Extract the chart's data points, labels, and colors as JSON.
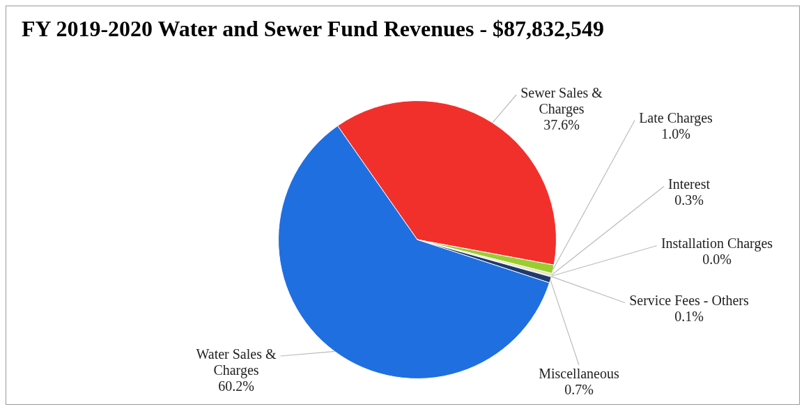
{
  "chart_data": {
    "type": "pie",
    "title": "FY 2019-2020 Water and Sewer Fund Revenues - $87,832,549",
    "categories": [
      "Sewer Sales & Charges",
      "Late Charges",
      "Interest",
      "Installation Charges",
      "Service Fees - Others",
      "Miscellaneous",
      "Water Sales & Charges"
    ],
    "values": [
      37.6,
      1.0,
      0.3,
      0.0,
      0.1,
      0.7,
      60.2
    ],
    "value_labels": [
      "37.6%",
      "1.0%",
      "0.3%",
      "0.0%",
      "0.1%",
      "0.7%",
      "60.2%"
    ],
    "colors": [
      "#f2302b",
      "#9acd32",
      "#e8e0a8",
      "#d8d8d8",
      "#5a7fb8",
      "#1f3b6e",
      "#1f6fe0"
    ],
    "legend": false
  }
}
